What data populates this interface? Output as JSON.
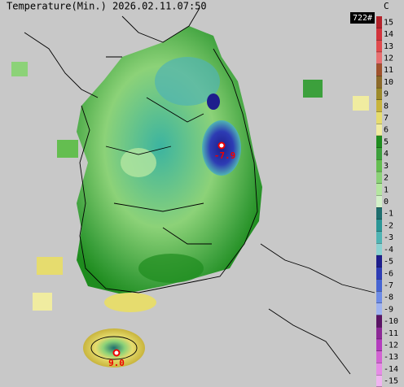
{
  "header": {
    "title": "Temperature(Min.) 2026.02.11.07:50",
    "badge": "722#"
  },
  "legend": {
    "unit": "C",
    "ticks": [
      15,
      14,
      13,
      12,
      11,
      10,
      9,
      8,
      7,
      6,
      5,
      4,
      3,
      2,
      1,
      0,
      -1,
      -2,
      -3,
      -4,
      -5,
      -6,
      -7,
      -8,
      -9,
      -10,
      -11,
      -12,
      -13,
      -14,
      -15
    ],
    "colors": [
      "#b3222a",
      "#d2333c",
      "#e04b4e",
      "#e87172",
      "#a0522d",
      "#8c6a2a",
      "#9d8a2a",
      "#c8b43c",
      "#e6dc6e",
      "#f0eca0",
      "#1e8c1e",
      "#3ca03c",
      "#64be50",
      "#8cd278",
      "#b4e6a0",
      "#d2f0c8",
      "#1e6e6e",
      "#2a9696",
      "#50b4b4",
      "#8cd2d2",
      "#1e1e8c",
      "#2d3cb4",
      "#4664d2",
      "#6e8ce6",
      "#a0b4f0",
      "#5a1464",
      "#8c2896",
      "#b43cbe",
      "#d264d2",
      "#e68ce6",
      "#f0b4f0"
    ]
  },
  "points": [
    {
      "label": "-7.9"
    },
    {
      "label": "9.0"
    }
  ]
}
